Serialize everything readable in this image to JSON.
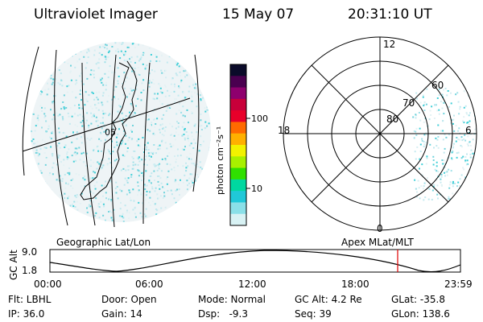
{
  "header": {
    "title": "Ultraviolet Imager",
    "date": "15 May 07",
    "time": "20:31:10 UT"
  },
  "geo_map": {
    "caption": "Geographic Lat/Lon",
    "grid_label": "05"
  },
  "colorbar": {
    "unit_label": "photon cm⁻²s⁻¹",
    "ticks": [
      "100",
      "10"
    ],
    "colors": [
      "#0b0b2a",
      "#4a0050",
      "#8e006e",
      "#c8003a",
      "#e8002a",
      "#ff6a00",
      "#ffb000",
      "#f2f200",
      "#a8f000",
      "#30e000",
      "#00d8a0",
      "#20c8d8",
      "#8ae0e8",
      "#d8f2f4"
    ]
  },
  "polar_plot": {
    "caption": "Apex MLat/MLT",
    "lat_labels": [
      "80",
      "70",
      "60"
    ],
    "mlt_labels": {
      "top": "12",
      "left": "18",
      "right": "6",
      "bottom": "0"
    }
  },
  "timeline": {
    "axis_label": "GC Alt",
    "y_ticks": [
      "9.0",
      "1.8"
    ],
    "x_ticks": [
      "00:00",
      "06:00",
      "12:00",
      "18:00",
      "23:59"
    ],
    "marker_color": "#e00000"
  },
  "info": {
    "rows": [
      [
        "Flt: LBHL",
        "Door: Open",
        "Mode: Normal",
        "GC Alt: 4.2 Re",
        "GLat: -35.8"
      ],
      [
        "IP: 36.0",
        "Gain: 14",
        "Dsp:   -9.3",
        "Seq: 39",
        "GLon: 138.6"
      ]
    ]
  }
}
